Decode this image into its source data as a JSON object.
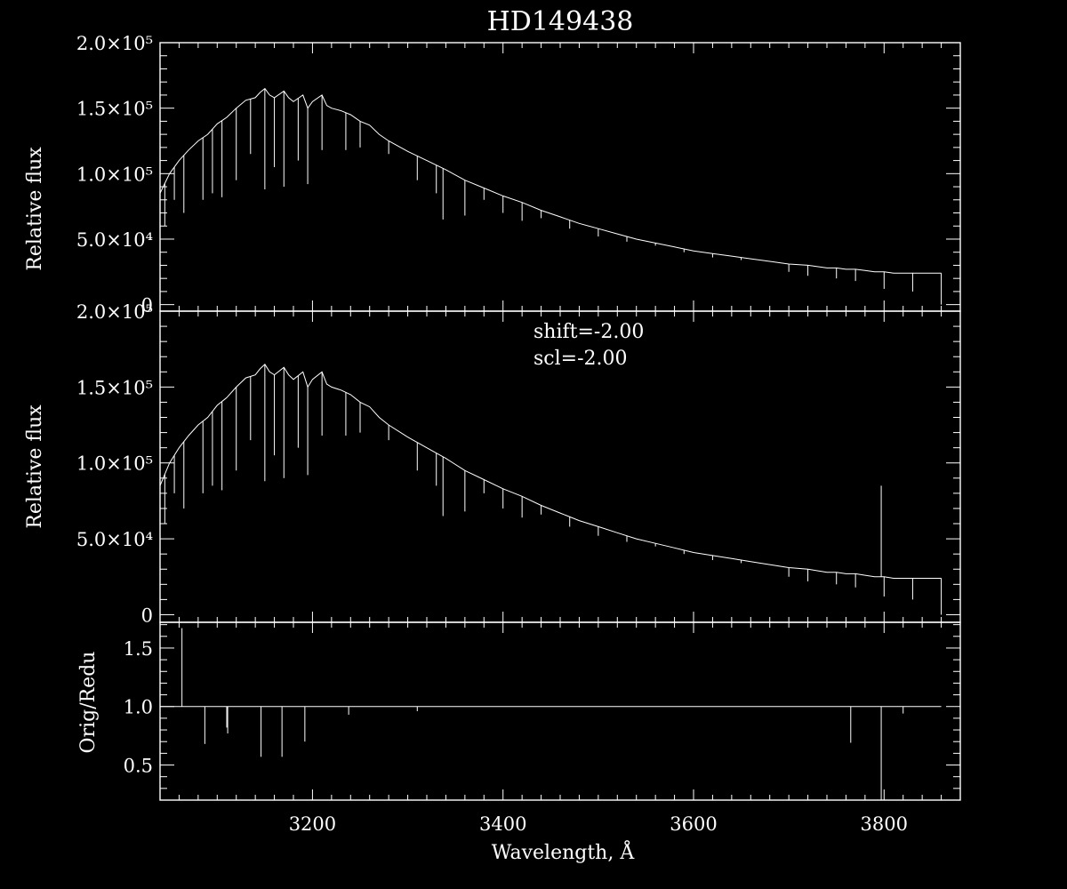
{
  "colors": {
    "background": "#000000",
    "foreground": "#ffffff"
  },
  "chart_data": [
    {
      "type": "line",
      "title": "HD149438",
      "ylabel": "Relative flux",
      "xlim": [
        3040,
        3880
      ],
      "ylim": [
        -5000,
        200000
      ],
      "ytick_labels": [
        {
          "value": 0,
          "label": "0"
        },
        {
          "value": 50000,
          "label": "5.0×10⁴"
        },
        {
          "value": 100000,
          "label": "1.0×10⁵"
        },
        {
          "value": 150000,
          "label": "1.5×10⁵"
        },
        {
          "value": 200000,
          "label": "2.0×10⁵"
        }
      ],
      "x": [
        3040,
        3050,
        3060,
        3070,
        3080,
        3090,
        3100,
        3110,
        3120,
        3130,
        3140,
        3145,
        3150,
        3155,
        3160,
        3170,
        3175,
        3180,
        3190,
        3195,
        3200,
        3210,
        3215,
        3220,
        3230,
        3240,
        3250,
        3260,
        3270,
        3280,
        3300,
        3320,
        3340,
        3360,
        3380,
        3400,
        3420,
        3440,
        3460,
        3480,
        3500,
        3520,
        3540,
        3560,
        3580,
        3600,
        3620,
        3640,
        3660,
        3680,
        3700,
        3720,
        3730,
        3740,
        3750,
        3760,
        3770,
        3780,
        3790,
        3800,
        3810,
        3820,
        3830,
        3840,
        3850,
        3860
      ],
      "y": [
        85000,
        100000,
        110000,
        118000,
        125000,
        130000,
        138000,
        143000,
        150000,
        156000,
        158000,
        162000,
        165000,
        160000,
        158000,
        163000,
        158000,
        155000,
        160000,
        150000,
        155000,
        160000,
        152000,
        150000,
        148000,
        145000,
        140000,
        137000,
        130000,
        125000,
        117000,
        110000,
        103000,
        95000,
        89000,
        83000,
        78000,
        72000,
        67000,
        62000,
        58000,
        54000,
        50000,
        47000,
        44000,
        41000,
        39000,
        37000,
        35000,
        33000,
        31000,
        30000,
        29000,
        28000,
        28000,
        27000,
        27000,
        26000,
        25000,
        25000,
        24000,
        24000,
        24000,
        24000,
        24000,
        24000
      ],
      "absorption_lines": [
        {
          "x": 3045,
          "y": 60000
        },
        {
          "x": 3055,
          "y": 80000
        },
        {
          "x": 3065,
          "y": 70000
        },
        {
          "x": 3085,
          "y": 80000
        },
        {
          "x": 3095,
          "y": 85000
        },
        {
          "x": 3105,
          "y": 82000
        },
        {
          "x": 3120,
          "y": 95000
        },
        {
          "x": 3135,
          "y": 115000
        },
        {
          "x": 3150,
          "y": 88000
        },
        {
          "x": 3160,
          "y": 105000
        },
        {
          "x": 3170,
          "y": 90000
        },
        {
          "x": 3185,
          "y": 110000
        },
        {
          "x": 3195,
          "y": 92000
        },
        {
          "x": 3210,
          "y": 118000
        },
        {
          "x": 3235,
          "y": 118000
        },
        {
          "x": 3250,
          "y": 120000
        },
        {
          "x": 3280,
          "y": 115000
        },
        {
          "x": 3310,
          "y": 95000
        },
        {
          "x": 3330,
          "y": 85000
        },
        {
          "x": 3337,
          "y": 65000
        },
        {
          "x": 3360,
          "y": 68000
        },
        {
          "x": 3380,
          "y": 80000
        },
        {
          "x": 3400,
          "y": 70000
        },
        {
          "x": 3420,
          "y": 64000
        },
        {
          "x": 3440,
          "y": 66000
        },
        {
          "x": 3470,
          "y": 58000
        },
        {
          "x": 3500,
          "y": 52000
        },
        {
          "x": 3530,
          "y": 48000
        },
        {
          "x": 3560,
          "y": 45000
        },
        {
          "x": 3590,
          "y": 40000
        },
        {
          "x": 3620,
          "y": 36000
        },
        {
          "x": 3650,
          "y": 34000
        },
        {
          "x": 3700,
          "y": 25000
        },
        {
          "x": 3720,
          "y": 22000
        },
        {
          "x": 3750,
          "y": 20000
        },
        {
          "x": 3770,
          "y": 18000
        },
        {
          "x": 3800,
          "y": 12000
        },
        {
          "x": 3830,
          "y": 10000
        }
      ]
    },
    {
      "type": "line",
      "ylabel": "Relative flux",
      "annotation_lines": [
        "shift=-2.00",
        "scl=-2.00"
      ],
      "xlim": [
        3040,
        3880
      ],
      "ylim": [
        -5000,
        200000
      ],
      "ytick_labels": [
        {
          "value": 0,
          "label": "0"
        },
        {
          "value": 50000,
          "label": "5.0×10⁴"
        },
        {
          "value": 100000,
          "label": "1.0×10⁵"
        },
        {
          "value": 150000,
          "label": "1.5×10⁵"
        },
        {
          "value": 200000,
          "label": "2.0×10⁵"
        }
      ],
      "x": [
        3040,
        3050,
        3060,
        3070,
        3080,
        3090,
        3100,
        3110,
        3120,
        3130,
        3140,
        3145,
        3150,
        3155,
        3160,
        3170,
        3175,
        3180,
        3190,
        3195,
        3200,
        3210,
        3215,
        3220,
        3230,
        3240,
        3250,
        3260,
        3270,
        3280,
        3300,
        3320,
        3340,
        3360,
        3380,
        3400,
        3420,
        3440,
        3460,
        3480,
        3500,
        3520,
        3540,
        3560,
        3580,
        3600,
        3620,
        3640,
        3660,
        3680,
        3700,
        3720,
        3730,
        3740,
        3750,
        3760,
        3770,
        3780,
        3790,
        3800,
        3810,
        3820,
        3830,
        3840,
        3850,
        3860
      ],
      "y": [
        85000,
        100000,
        110000,
        118000,
        125000,
        130000,
        138000,
        143000,
        150000,
        156000,
        158000,
        162000,
        165000,
        160000,
        158000,
        163000,
        158000,
        155000,
        160000,
        150000,
        155000,
        160000,
        152000,
        150000,
        148000,
        145000,
        140000,
        137000,
        130000,
        125000,
        117000,
        110000,
        103000,
        95000,
        89000,
        83000,
        78000,
        72000,
        67000,
        62000,
        58000,
        54000,
        50000,
        47000,
        44000,
        41000,
        39000,
        37000,
        35000,
        33000,
        31000,
        30000,
        29000,
        28000,
        28000,
        27000,
        27000,
        26000,
        25000,
        25000,
        24000,
        24000,
        24000,
        24000,
        24000,
        24000
      ],
      "absorption_lines": [
        {
          "x": 3045,
          "y": 60000
        },
        {
          "x": 3055,
          "y": 80000
        },
        {
          "x": 3065,
          "y": 70000
        },
        {
          "x": 3085,
          "y": 80000
        },
        {
          "x": 3095,
          "y": 85000
        },
        {
          "x": 3105,
          "y": 82000
        },
        {
          "x": 3120,
          "y": 95000
        },
        {
          "x": 3135,
          "y": 115000
        },
        {
          "x": 3150,
          "y": 88000
        },
        {
          "x": 3160,
          "y": 105000
        },
        {
          "x": 3170,
          "y": 90000
        },
        {
          "x": 3185,
          "y": 110000
        },
        {
          "x": 3195,
          "y": 92000
        },
        {
          "x": 3210,
          "y": 118000
        },
        {
          "x": 3235,
          "y": 118000
        },
        {
          "x": 3250,
          "y": 120000
        },
        {
          "x": 3280,
          "y": 115000
        },
        {
          "x": 3310,
          "y": 95000
        },
        {
          "x": 3330,
          "y": 85000
        },
        {
          "x": 3337,
          "y": 65000
        },
        {
          "x": 3360,
          "y": 68000
        },
        {
          "x": 3380,
          "y": 80000
        },
        {
          "x": 3400,
          "y": 70000
        },
        {
          "x": 3420,
          "y": 64000
        },
        {
          "x": 3440,
          "y": 66000
        },
        {
          "x": 3470,
          "y": 58000
        },
        {
          "x": 3500,
          "y": 52000
        },
        {
          "x": 3530,
          "y": 48000
        },
        {
          "x": 3560,
          "y": 45000
        },
        {
          "x": 3590,
          "y": 40000
        },
        {
          "x": 3620,
          "y": 36000
        },
        {
          "x": 3650,
          "y": 34000
        },
        {
          "x": 3700,
          "y": 25000
        },
        {
          "x": 3720,
          "y": 22000
        },
        {
          "x": 3750,
          "y": 20000
        },
        {
          "x": 3770,
          "y": 18000
        },
        {
          "x": 3800,
          "y": 12000
        },
        {
          "x": 3830,
          "y": 10000
        }
      ],
      "emission_lines": [
        {
          "x": 3797,
          "y": 85000
        }
      ]
    },
    {
      "type": "line",
      "xlabel": "Wavelength, Å",
      "ylabel": "Orig/Redu",
      "xlim": [
        3040,
        3880
      ],
      "ylim": [
        0.2,
        1.72
      ],
      "ytick_labels": [
        {
          "value": 0.5,
          "label": "0.5"
        },
        {
          "value": 1.0,
          "label": "1.0"
        },
        {
          "value": 1.5,
          "label": "1.5"
        }
      ],
      "xtick_labels": [
        {
          "value": 3200,
          "label": "3200"
        },
        {
          "value": 3400,
          "label": "3400"
        },
        {
          "value": 3600,
          "label": "3600"
        },
        {
          "value": 3800,
          "label": "3800"
        }
      ],
      "baseline": 1.0,
      "x": [
        3040,
        3860
      ],
      "y": [
        1.0,
        1.0
      ],
      "spikes": [
        {
          "x": 3063,
          "y": 1.67
        },
        {
          "x": 3087,
          "y": 0.68
        },
        {
          "x": 3110,
          "y": 0.82
        },
        {
          "x": 3111,
          "y": 0.77
        },
        {
          "x": 3146,
          "y": 0.57
        },
        {
          "x": 3168,
          "y": 0.57
        },
        {
          "x": 3192,
          "y": 0.7
        },
        {
          "x": 3238,
          "y": 0.93
        },
        {
          "x": 3310,
          "y": 0.96
        },
        {
          "x": 3765,
          "y": 0.69
        },
        {
          "x": 3797,
          "y": 0.02
        },
        {
          "x": 3820,
          "y": 0.94
        }
      ]
    }
  ]
}
